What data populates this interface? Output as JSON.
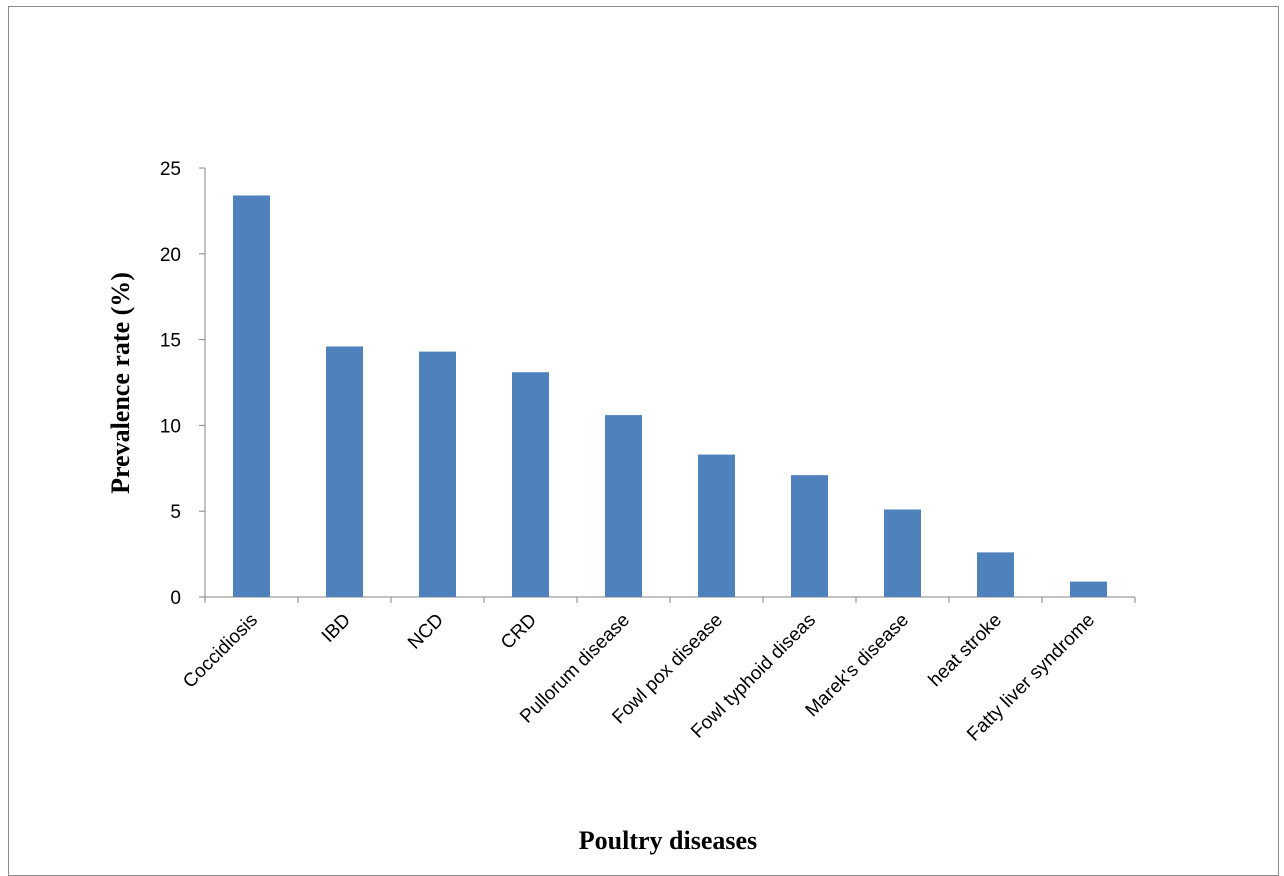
{
  "chart_data": {
    "type": "bar",
    "categories": [
      "Coccidiosis",
      "IBD",
      "NCD",
      "CRD",
      "Pullorum disease",
      "Fowl pox disease",
      "Fowl typhoid diseas",
      "Marek's disease",
      "heat stroke",
      "Fatty liver syndrome"
    ],
    "values": [
      23.4,
      14.6,
      14.3,
      13.1,
      10.6,
      8.3,
      7.1,
      5.1,
      2.6,
      0.9
    ],
    "xlabel": "Poultry diseases",
    "ylabel": "Prevalence rate (%)",
    "ylim": [
      0,
      25
    ],
    "yticks": [
      0,
      5,
      10,
      15,
      20,
      25
    ],
    "grid": false,
    "legend": "none",
    "bar_color": "#4f81bd"
  }
}
